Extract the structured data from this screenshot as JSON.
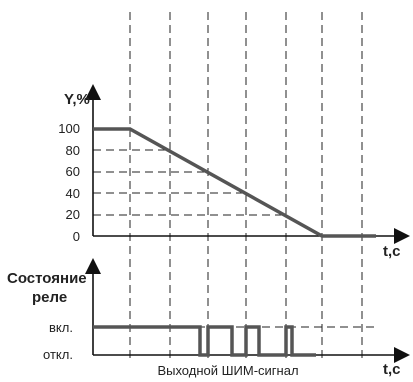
{
  "top_chart": {
    "ylabel": "Y,%",
    "xlabel": "t,c",
    "ticks": [
      "100",
      "80",
      "60",
      "40",
      "20",
      "0"
    ]
  },
  "bottom_chart": {
    "ylabel_line1": "Состояние",
    "ylabel_line2": "реле",
    "xlabel": "t,c",
    "on_label": "вкл.",
    "off_label": "откл.",
    "caption": "Выходной ШИМ-сигнал"
  },
  "colors": {
    "line": "#111111",
    "signal": "#444444",
    "text": "#222222"
  }
}
